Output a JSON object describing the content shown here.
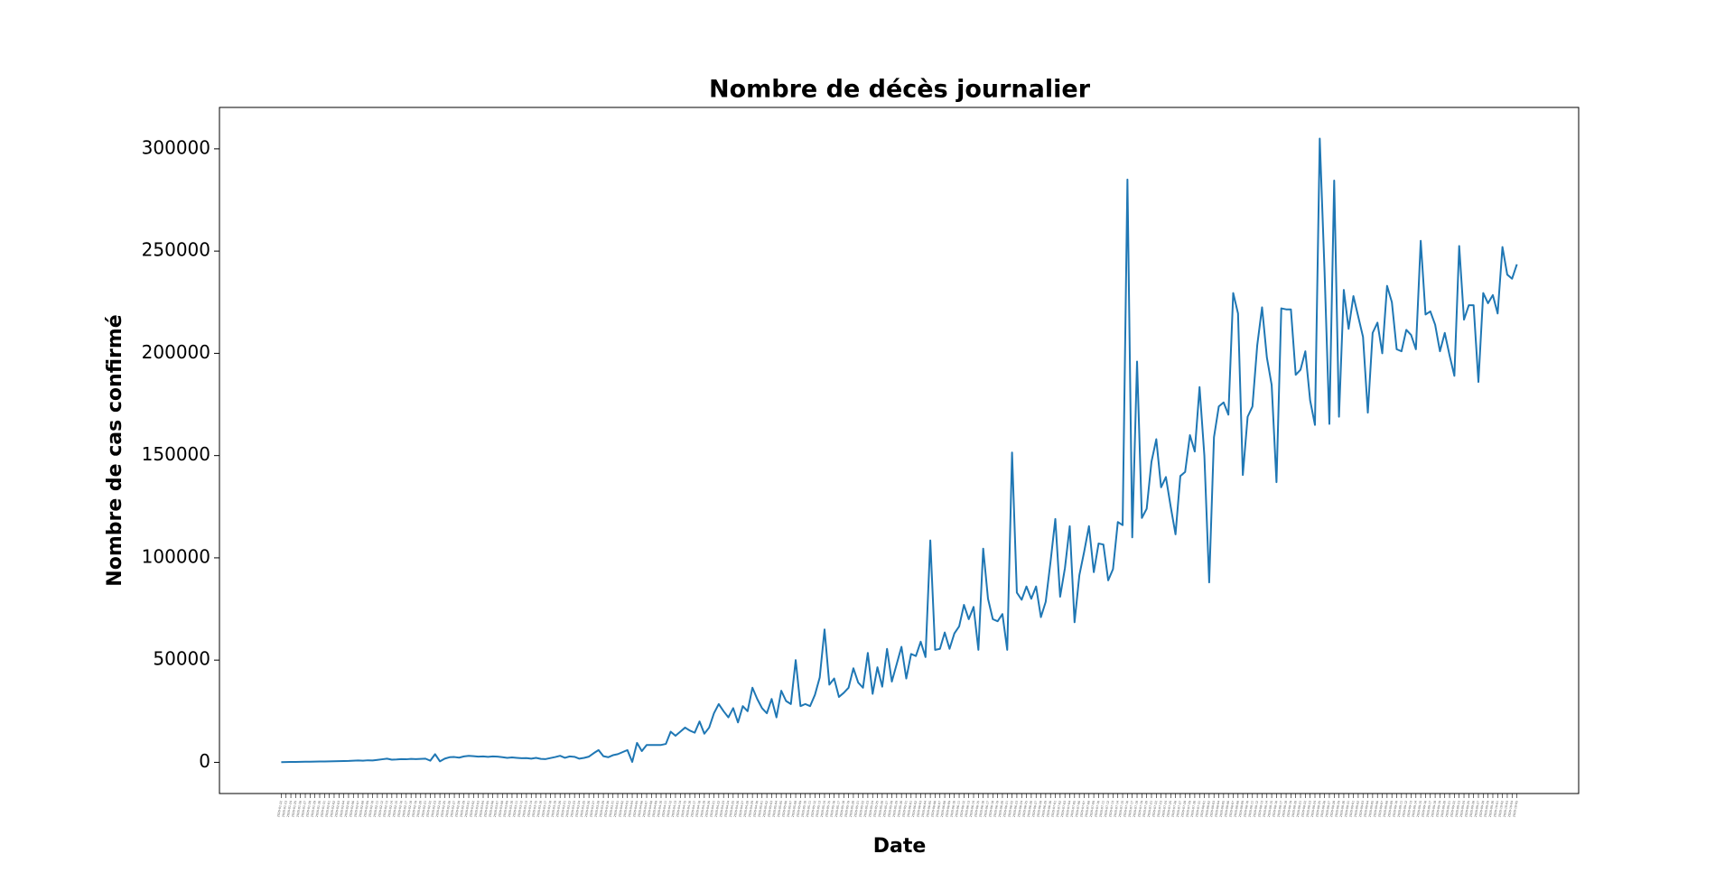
{
  "chart_data": {
    "type": "line",
    "title": "Nombre de décès journalier",
    "x_label": "Date",
    "y_label": "Nombre de cas confirmé",
    "categories": [
      "2020-01-22",
      "2020-01-23",
      "2020-01-24",
      "2020-01-25",
      "2020-01-26",
      "2020-01-27",
      "2020-01-28",
      "2020-01-29",
      "2020-01-30",
      "2020-01-31",
      "2020-02-01",
      "2020-02-02",
      "2020-02-03",
      "2020-02-04",
      "2020-02-05",
      "2020-02-06",
      "2020-02-07",
      "2020-02-08",
      "2020-02-09",
      "2020-02-10",
      "2020-02-11",
      "2020-02-12",
      "2020-02-13",
      "2020-02-14",
      "2020-02-15",
      "2020-02-16",
      "2020-02-17",
      "2020-02-18",
      "2020-02-19",
      "2020-02-20",
      "2020-02-21",
      "2020-02-22",
      "2020-02-23",
      "2020-02-24",
      "2020-02-25",
      "2020-02-26",
      "2020-02-27",
      "2020-02-28",
      "2020-02-29",
      "2020-03-01",
      "2020-03-02",
      "2020-03-03",
      "2020-03-04",
      "2020-03-05",
      "2020-03-06",
      "2020-03-07",
      "2020-03-08",
      "2020-03-09",
      "2020-03-10",
      "2020-03-11",
      "2020-03-12",
      "2020-03-13",
      "2020-03-14",
      "2020-03-15",
      "2020-03-16",
      "2020-03-17",
      "2020-03-18",
      "2020-03-19",
      "2020-03-20",
      "2020-03-21",
      "2020-03-22",
      "2020-03-23",
      "2020-03-24",
      "2020-03-25",
      "2020-03-26",
      "2020-03-27",
      "2020-03-28",
      "2020-03-29",
      "2020-03-30",
      "2020-03-31",
      "2020-04-01",
      "2020-04-02",
      "2020-04-03",
      "2020-04-04",
      "2020-04-05",
      "2020-04-06",
      "2020-04-07",
      "2020-04-08",
      "2020-04-09",
      "2020-04-10",
      "2020-04-11",
      "2020-04-12",
      "2020-04-13",
      "2020-04-14",
      "2020-04-15",
      "2020-04-16",
      "2020-04-17",
      "2020-04-18",
      "2020-04-19",
      "2020-04-20",
      "2020-04-21",
      "2020-04-22",
      "2020-04-23",
      "2020-04-24",
      "2020-04-25",
      "2020-04-26",
      "2020-04-27",
      "2020-04-28",
      "2020-04-29",
      "2020-04-30",
      "2020-05-01",
      "2020-05-02",
      "2020-05-03",
      "2020-05-04",
      "2020-05-05",
      "2020-05-06",
      "2020-05-07",
      "2020-05-08",
      "2020-05-09",
      "2020-05-10",
      "2020-05-11",
      "2020-05-12",
      "2020-05-13",
      "2020-05-14",
      "2020-05-15",
      "2020-05-16",
      "2020-05-17",
      "2020-05-18",
      "2020-05-19",
      "2020-05-20",
      "2020-05-21",
      "2020-05-22",
      "2020-05-23",
      "2020-05-24",
      "2020-05-25",
      "2020-05-26",
      "2020-05-27",
      "2020-05-28",
      "2020-05-29",
      "2020-05-30",
      "2020-05-31",
      "2020-06-01",
      "2020-06-02",
      "2020-06-03",
      "2020-06-04",
      "2020-06-05",
      "2020-06-06",
      "2020-06-07",
      "2020-06-08",
      "2020-06-09",
      "2020-06-10",
      "2020-06-11",
      "2020-06-12",
      "2020-06-13",
      "2020-06-14",
      "2020-06-15",
      "2020-06-16",
      "2020-06-17",
      "2020-06-18",
      "2020-06-19",
      "2020-06-20",
      "2020-06-21",
      "2020-06-22",
      "2020-06-23",
      "2020-06-24",
      "2020-06-25",
      "2020-06-26",
      "2020-06-27",
      "2020-06-28",
      "2020-06-29",
      "2020-06-30",
      "2020-07-01",
      "2020-07-02",
      "2020-07-03",
      "2020-07-04",
      "2020-07-05",
      "2020-07-06",
      "2020-07-07",
      "2020-07-08",
      "2020-07-09",
      "2020-07-10",
      "2020-07-11",
      "2020-07-12",
      "2020-07-13",
      "2020-07-14",
      "2020-07-15",
      "2020-07-16",
      "2020-07-17",
      "2020-07-18",
      "2020-07-19",
      "2020-07-20",
      "2020-07-21",
      "2020-07-22",
      "2020-07-23",
      "2020-07-24",
      "2020-07-25",
      "2020-07-26",
      "2020-07-27",
      "2020-07-28",
      "2020-07-29",
      "2020-07-30",
      "2020-07-31",
      "2020-08-01",
      "2020-08-02",
      "2020-08-03",
      "2020-08-04",
      "2020-08-05",
      "2020-08-06",
      "2020-08-07",
      "2020-08-08",
      "2020-08-09",
      "2020-08-10",
      "2020-08-11",
      "2020-08-12",
      "2020-08-13",
      "2020-08-14",
      "2020-08-15",
      "2020-08-16",
      "2020-08-17",
      "2020-08-18",
      "2020-08-19",
      "2020-08-20",
      "2020-08-21",
      "2020-08-22",
      "2020-08-23",
      "2020-08-24",
      "2020-08-25",
      "2020-08-26",
      "2020-08-27",
      "2020-08-28",
      "2020-08-29",
      "2020-08-30",
      "2020-08-31",
      "2020-09-01",
      "2020-09-02",
      "2020-09-03",
      "2020-09-04",
      "2020-09-05",
      "2020-09-06",
      "2020-09-07",
      "2020-09-08",
      "2020-09-09",
      "2020-09-10",
      "2020-09-11",
      "2020-09-12",
      "2020-09-13",
      "2020-09-14",
      "2020-09-15",
      "2020-09-16",
      "2020-09-17",
      "2020-09-18",
      "2020-09-19",
      "2020-09-20",
      "2020-09-21",
      "2020-09-22",
      "2020-09-23",
      "2020-09-24",
      "2020-09-25",
      "2020-09-26",
      "2020-09-27",
      "2020-09-28",
      "2020-09-29",
      "2020-09-30",
      "2020-10-01",
      "2020-10-02",
      "2020-10-03",
      "2020-10-04",
      "2020-10-05"
    ],
    "values": [
      100,
      150,
      200,
      200,
      250,
      300,
      300,
      350,
      400,
      450,
      500,
      550,
      600,
      650,
      700,
      800,
      900,
      800,
      1000,
      900,
      1200,
      1500,
      1800,
      1300,
      1400,
      1600,
      1500,
      1700,
      1600,
      1700,
      1800,
      800,
      4000,
      500,
      1800,
      2500,
      2600,
      2300,
      2900,
      3200,
      3000,
      2800,
      2900,
      2700,
      2900,
      2800,
      2500,
      2200,
      2400,
      2200,
      2000,
      2100,
      1800,
      2200,
      1700,
      1600,
      2100,
      2600,
      3200,
      2200,
      2900,
      2700,
      1800,
      2200,
      2800,
      4500,
      6000,
      3000,
      2500,
      3500,
      4000,
      5000,
      6000,
      200,
      9500,
      5500,
      8500,
      8500,
      8500,
      8500,
      9000,
      15000,
      13000,
      15000,
      17000,
      15500,
      14500,
      20000,
      14000,
      17000,
      24000,
      28500,
      25000,
      22000,
      26500,
      19500,
      27500,
      25000,
      36500,
      31000,
      26500,
      24000,
      31000,
      22000,
      35000,
      30000,
      28500,
      50000,
      27500,
      28500,
      27500,
      33000,
      41500,
      65000,
      38000,
      41000,
      32000,
      34000,
      36500,
      46000,
      39000,
      36500,
      53500,
      33500,
      46500,
      37000,
      55500,
      39500,
      48000,
      56500,
      41000,
      53000,
      52000,
      59000,
      51500,
      108500,
      55000,
      55500,
      63500,
      55500,
      63000,
      66500,
      77000,
      70000,
      76000,
      55000,
      104500,
      80000,
      70000,
      69000,
      72500,
      55000,
      151500,
      83000,
      79500,
      86000,
      80000,
      86000,
      71000,
      78500,
      98000,
      119000,
      81000,
      95000,
      115500,
      68500,
      91500,
      103000,
      115500,
      93000,
      107000,
      106500,
      89000,
      94500,
      117500,
      116000,
      285000,
      110000,
      196000,
      119500,
      124000,
      147000,
      158000,
      134500,
      139500,
      125000,
      111500,
      140000,
      142000,
      160000,
      152000,
      183500,
      150000,
      88000,
      159000,
      174000,
      176000,
      170000,
      229500,
      219500,
      140500,
      169000,
      174000,
      204000,
      222500,
      198000,
      184500,
      137000,
      222000,
      221500,
      221500,
      189500,
      192000,
      201000,
      177000,
      165000,
      305000,
      240000,
      165500,
      284500,
      169000,
      231000,
      212000,
      228000,
      218000,
      208000,
      171000,
      210000,
      215000,
      200000,
      233000,
      225000,
      202000,
      201000,
      211500,
      209000,
      202000,
      255000,
      219000,
      220500,
      214000,
      201000,
      210000,
      199000,
      189000,
      252500,
      216500,
      223500,
      223500,
      186000,
      229500,
      224500,
      228500,
      219500,
      252000,
      238500,
      236500,
      243500
    ],
    "color": "#1f77b4",
    "ylim": [
      -15250,
      320250
    ],
    "yticks": [
      0,
      50000,
      100000,
      150000,
      200000,
      250000,
      300000
    ]
  }
}
